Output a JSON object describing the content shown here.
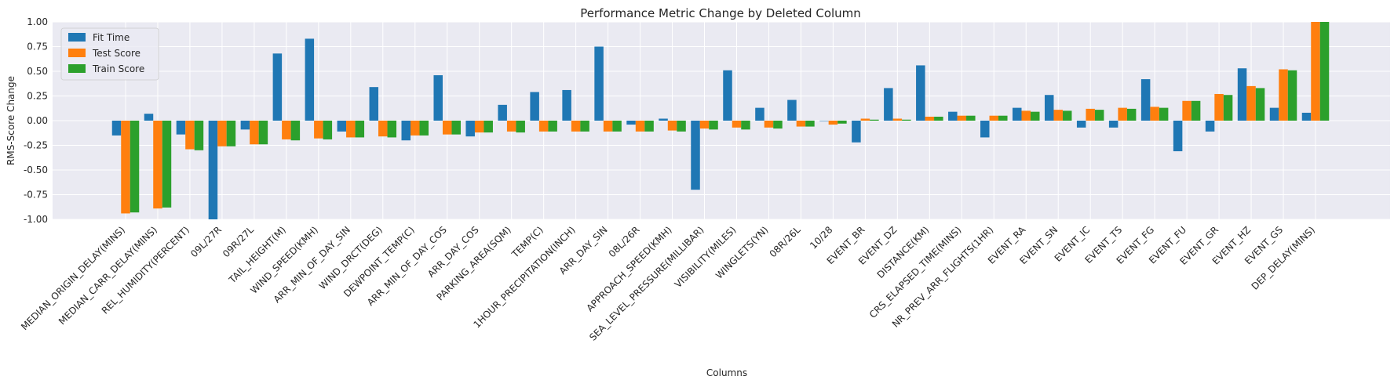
{
  "chart_data": {
    "type": "bar",
    "title": "Performance Metric Change by Deleted Column",
    "xlabel": "Columns",
    "ylabel": "RMS-Score Change",
    "ylim": [
      -1.0,
      1.0
    ],
    "yticks": [
      "-1.00",
      "-0.75",
      "-0.50",
      "-0.25",
      "0.00",
      "0.25",
      "0.50",
      "0.75",
      "1.00"
    ],
    "grid": true,
    "legend_position": "top-left",
    "categories": [
      "MEDIAN_ORIGIN_DELAY(MINS)",
      "MEDIAN_CARR_DELAY(MINS)",
      "REL_HUMIDITY(PERCENT)",
      "09L/27R",
      "09R/27L",
      "TAIL_HEIGHT(M)",
      "WIND_SPEED(KMH)",
      "ARR_MIN_OF_DAY_SIN",
      "WIND_DRCT(DEG)",
      "DEWPOINT_TEMP(C)",
      "ARR_MIN_OF_DAY_COS",
      "ARR_DAY_COS",
      "PARKING_AREA(SQM)",
      "TEMP(C)",
      "1HOUR_PRECIPITATION(INCH)",
      "ARR_DAY_SIN",
      "08L/26R",
      "APPROACH_SPEED(KMH)",
      "SEA_LEVEL_PRESSURE(MILLIBAR)",
      "VISIBILITY(MILES)",
      "WINGLETS(YN)",
      "08R/26L",
      "10/28",
      "EVENT_BR",
      "EVENT_DZ",
      "DISTANCE(KM)",
      "CRS_ELAPSED_TIME(MINS)",
      "NR_PREV_ARR_FLIGHTS(1HR)",
      "EVENT_RA",
      "EVENT_SN",
      "EVENT_IC",
      "EVENT_TS",
      "EVENT_FG",
      "EVENT_FU",
      "EVENT_GR",
      "EVENT_HZ",
      "EVENT_GS",
      "DEP_DELAY(MINS)"
    ],
    "series": [
      {
        "name": "Fit Time",
        "color": "#1f77b4",
        "values": [
          -0.15,
          0.07,
          -0.14,
          -1.0,
          -0.09,
          0.68,
          0.83,
          -0.11,
          0.34,
          -0.2,
          0.46,
          -0.16,
          0.16,
          0.29,
          0.31,
          0.75,
          -0.04,
          0.02,
          -0.7,
          0.51,
          0.13,
          0.21,
          0.0,
          -0.22,
          0.33,
          0.56,
          0.09,
          -0.17,
          0.13,
          0.26,
          -0.07,
          -0.07,
          0.42,
          -0.31,
          -0.11,
          0.53,
          0.13,
          0.08
        ]
      },
      {
        "name": "Test Score",
        "color": "#ff7f0e",
        "values": [
          -0.94,
          -0.89,
          -0.29,
          -0.26,
          -0.24,
          -0.19,
          -0.18,
          -0.17,
          -0.16,
          -0.15,
          -0.14,
          -0.12,
          -0.11,
          -0.11,
          -0.11,
          -0.11,
          -0.11,
          -0.1,
          -0.08,
          -0.07,
          -0.07,
          -0.06,
          -0.04,
          0.02,
          0.02,
          0.04,
          0.05,
          0.05,
          0.1,
          0.11,
          0.12,
          0.13,
          0.14,
          0.2,
          0.27,
          0.35,
          0.52,
          1.0
        ]
      },
      {
        "name": "Train Score",
        "color": "#2ca02c",
        "values": [
          -0.93,
          -0.88,
          -0.3,
          -0.26,
          -0.24,
          -0.2,
          -0.19,
          -0.17,
          -0.17,
          -0.15,
          -0.14,
          -0.12,
          -0.12,
          -0.11,
          -0.11,
          -0.11,
          -0.11,
          -0.11,
          -0.09,
          -0.09,
          -0.08,
          -0.06,
          -0.03,
          0.01,
          0.01,
          0.04,
          0.05,
          0.05,
          0.09,
          0.1,
          0.11,
          0.12,
          0.13,
          0.2,
          0.26,
          0.33,
          0.51,
          1.0
        ]
      }
    ]
  }
}
